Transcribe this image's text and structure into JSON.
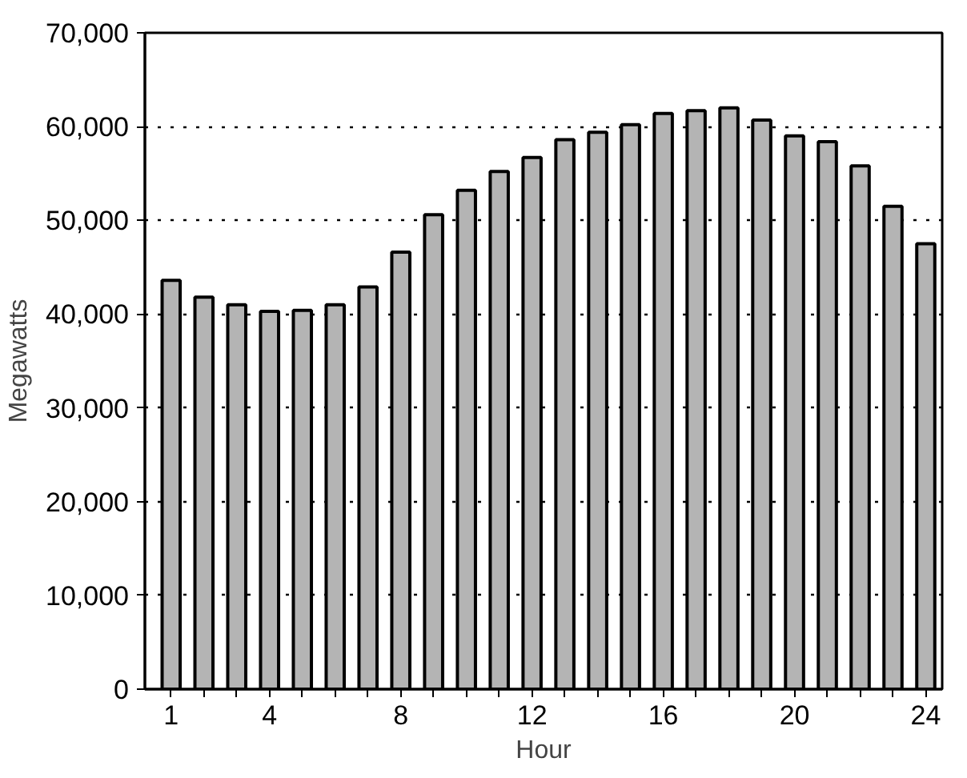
{
  "chart_data": {
    "type": "bar",
    "xlabel": "Hour",
    "ylabel": "Megawatts",
    "x": [
      1,
      2,
      3,
      4,
      5,
      6,
      7,
      8,
      9,
      10,
      11,
      12,
      13,
      14,
      15,
      16,
      17,
      18,
      19,
      20,
      21,
      22,
      23,
      24
    ],
    "values": [
      43600,
      41800,
      41000,
      40300,
      40400,
      41000,
      42900,
      46600,
      50600,
      53200,
      55200,
      56700,
      58600,
      59400,
      60200,
      61400,
      61700,
      62000,
      60700,
      59000,
      58400,
      55800,
      51500,
      47500
    ],
    "color": "#b4b4b4",
    "xlim": [
      0.2,
      24.5
    ],
    "xticks": [
      1,
      {
        "value": 2,
        "label": null
      },
      {
        "value": 3,
        "label": null
      },
      4,
      {
        "value": 5,
        "label": null
      },
      {
        "value": 6,
        "label": null
      },
      {
        "value": 7,
        "label": null
      },
      8,
      {
        "value": 9,
        "label": null
      },
      {
        "value": 10,
        "label": null
      },
      {
        "value": 11,
        "label": null
      },
      12,
      {
        "value": 13,
        "label": null
      },
      {
        "value": 14,
        "label": null
      },
      {
        "value": 15,
        "label": null
      },
      16,
      {
        "value": 17,
        "label": null
      },
      {
        "value": 18,
        "label": null
      },
      {
        "value": 19,
        "label": null
      },
      20,
      {
        "value": 21,
        "label": null
      },
      {
        "value": 22,
        "label": null
      },
      {
        "value": 23,
        "label": null
      },
      24
    ],
    "ylim": [
      0,
      70000
    ],
    "yticks": [
      {
        "value": 0,
        "label": "0"
      },
      {
        "value": 10000,
        "label": "10,000"
      },
      {
        "value": 20000,
        "label": "20,000"
      },
      {
        "value": 30000,
        "label": "30,000"
      },
      {
        "value": 40000,
        "label": "40,000"
      },
      {
        "value": 50000,
        "label": "50,000"
      },
      {
        "value": 60000,
        "label": "60,000"
      },
      {
        "value": 70000,
        "label": "70,000"
      }
    ],
    "grid": "y"
  }
}
